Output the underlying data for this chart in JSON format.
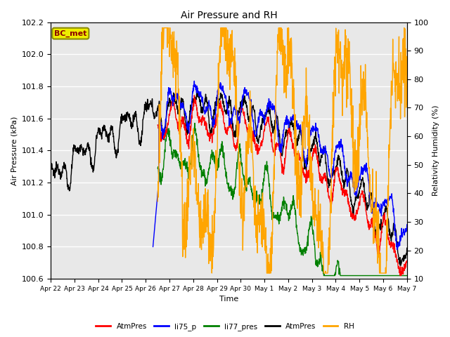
{
  "title": "Air Pressure and RH",
  "xlabel": "Time",
  "ylabel_left": "Air Pressure (kPa)",
  "ylabel_right": "Relativity Humidity (%)",
  "ylim_left": [
    100.6,
    102.2
  ],
  "ylim_right": [
    10,
    100
  ],
  "yticks_left": [
    100.6,
    100.8,
    101.0,
    101.2,
    101.4,
    101.6,
    101.8,
    102.0,
    102.2
  ],
  "yticks_right": [
    10,
    20,
    30,
    40,
    50,
    60,
    70,
    80,
    90,
    100
  ],
  "xtick_labels": [
    "Apr 22",
    "Apr 23",
    "Apr 24",
    "Apr 25",
    "Apr 26",
    "Apr 27",
    "Apr 28",
    "Apr 29",
    "Apr 30",
    "May 1",
    "May 2",
    "May 3",
    "May 4",
    "May 5",
    "May 6",
    "May 7"
  ],
  "annotation_text": "BC_met",
  "annotation_fg": "#8B0000",
  "annotation_bg": "#EEEE00",
  "annotation_edge": "#8B8B00",
  "background_color": "#E8E8E8",
  "legend_entries": [
    "AtmPres",
    "li75_p",
    "li77_pres",
    "AtmPres",
    "RH"
  ],
  "legend_colors": [
    "red",
    "blue",
    "green",
    "black",
    "orange"
  ],
  "line_colors": {
    "AtmPres_red": "red",
    "li75_p": "blue",
    "li77_pres": "green",
    "AtmPres_black": "black",
    "RH": "orange"
  },
  "figsize": [
    6.4,
    4.8
  ],
  "dpi": 100
}
